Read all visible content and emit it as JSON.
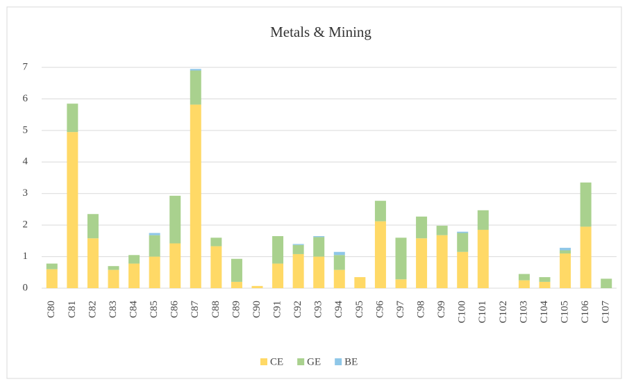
{
  "chart_data": {
    "type": "bar",
    "stacked": true,
    "title": "Metals  & Mining",
    "categories": [
      "C80",
      "C81",
      "C82",
      "C83",
      "C84",
      "C85",
      "C86",
      "C87",
      "C88",
      "C89",
      "C90",
      "C91",
      "C92",
      "C93",
      "C94",
      "C95",
      "C96",
      "C97",
      "C98",
      "C99",
      "C100",
      "C101",
      "C102",
      "C103",
      "C104",
      "C105",
      "C106",
      "C107"
    ],
    "series": [
      {
        "name": "CE",
        "color": "#ffd966",
        "values": [
          0.6,
          4.95,
          1.58,
          0.58,
          0.78,
          1.0,
          1.42,
          5.82,
          1.33,
          0.2,
          0.07,
          0.78,
          1.08,
          1.0,
          0.58,
          0.35,
          2.12,
          0.28,
          1.58,
          1.68,
          1.15,
          1.85,
          0,
          0.25,
          0.2,
          1.1,
          1.95,
          0
        ]
      },
      {
        "name": "GE",
        "color": "#a9d18e",
        "values": [
          0.18,
          0.9,
          0.77,
          0.12,
          0.27,
          0.68,
          1.51,
          1.08,
          0.27,
          0.73,
          0,
          0.87,
          0.29,
          0.62,
          0.47,
          0,
          0.65,
          1.32,
          0.69,
          0.3,
          0.6,
          0.62,
          0,
          0.2,
          0.15,
          0.1,
          1.4,
          0.3
        ]
      },
      {
        "name": "BE",
        "color": "#8fc7e8",
        "values": [
          0,
          0,
          0,
          0,
          0,
          0.07,
          0,
          0.05,
          0,
          0,
          0,
          0,
          0.03,
          0.03,
          0.1,
          0,
          0,
          0,
          0,
          0,
          0.04,
          0,
          0,
          0,
          0,
          0.08,
          0,
          0
        ]
      }
    ],
    "ylim": [
      0,
      7
    ],
    "yticks": [
      0,
      1,
      2,
      3,
      4,
      5,
      6,
      7
    ],
    "grid": true,
    "legend": "bottom"
  }
}
